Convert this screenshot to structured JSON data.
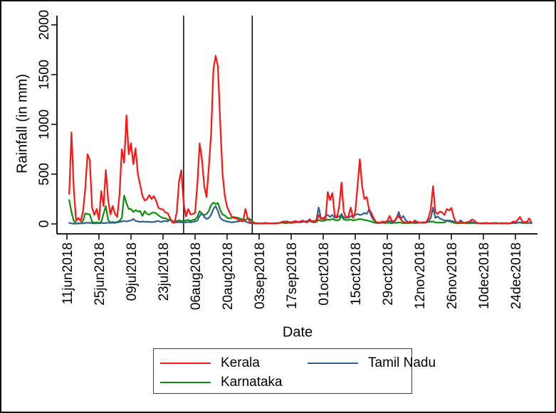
{
  "window": {
    "background": "#ffffff",
    "border_color": "#111111"
  },
  "chart_data": {
    "type": "line",
    "title": "",
    "xlabel": "Date",
    "ylabel": "Rainfall (in mm)",
    "grid": false,
    "ylim": [
      0,
      2000
    ],
    "y_ticks": [
      0,
      500,
      1000,
      1500,
      2000
    ],
    "x_unit": "days since 11jun2018",
    "xlim_days": [
      -4.4,
      205.6
    ],
    "y_domain": [
      -100,
      2095
    ],
    "x_ticks": [
      {
        "day": 0,
        "label": "11jun2018"
      },
      {
        "day": 14,
        "label": "25jun2018"
      },
      {
        "day": 28,
        "label": "09jul2018"
      },
      {
        "day": 42,
        "label": "23jul2018"
      },
      {
        "day": 56,
        "label": "06aug2018"
      },
      {
        "day": 70,
        "label": "20aug2018"
      },
      {
        "day": 84,
        "label": "03sep2018"
      },
      {
        "day": 98,
        "label": "17sep2018"
      },
      {
        "day": 112,
        "label": "01oct2018"
      },
      {
        "day": 126,
        "label": "15oct2018"
      },
      {
        "day": 140,
        "label": "29oct2018"
      },
      {
        "day": 154,
        "label": "12nov2018"
      },
      {
        "day": 168,
        "label": "26nov2018"
      },
      {
        "day": 182,
        "label": "10dec2018"
      },
      {
        "day": 196,
        "label": "24dec2018"
      }
    ],
    "reference_lines": {
      "color": "#000000",
      "days": [
        51,
        81
      ]
    },
    "legend": {
      "position": "bottom-center",
      "columns": 2,
      "border_color": "#3c3c3c"
    },
    "series": [
      {
        "name": "Kerala",
        "color": "#ff1414",
        "start_day": 1,
        "values": [
          300,
          920,
          350,
          30,
          60,
          30,
          120,
          350,
          700,
          640,
          160,
          90,
          150,
          40,
          330,
          180,
          540,
          240,
          95,
          180,
          100,
          70,
          300,
          750,
          615,
          1090,
          700,
          810,
          600,
          760,
          500,
          390,
          280,
          235,
          250,
          290,
          250,
          280,
          230,
          160,
          150,
          145,
          115,
          110,
          60,
          15,
          10,
          120,
          430,
          540,
          210,
          75,
          150,
          95,
          100,
          110,
          400,
          810,
          650,
          380,
          270,
          570,
          900,
          1550,
          1690,
          1580,
          1000,
          500,
          280,
          170,
          120,
          75,
          60,
          55,
          40,
          30,
          25,
          150,
          60,
          20,
          12,
          8,
          6,
          5,
          6,
          8,
          10,
          6,
          5,
          6,
          5,
          8,
          12,
          20,
          25,
          15,
          10,
          18,
          12,
          30,
          15,
          25,
          35,
          20,
          15,
          48,
          25,
          30,
          25,
          90,
          50,
          60,
          45,
          320,
          240,
          310,
          90,
          60,
          180,
          415,
          120,
          60,
          80,
          165,
          60,
          120,
          380,
          650,
          380,
          250,
          270,
          150,
          110,
          60,
          20,
          10,
          15,
          25,
          20,
          30,
          80,
          30,
          25,
          60,
          80,
          40,
          20,
          15,
          12,
          25,
          10,
          35,
          20,
          15,
          10,
          20,
          15,
          60,
          150,
          380,
          120,
          100,
          125,
          115,
          90,
          150,
          135,
          160,
          70,
          20,
          10,
          12,
          15,
          10,
          12,
          25,
          45,
          35,
          12,
          8,
          6,
          8,
          10,
          8,
          6,
          8,
          6,
          8,
          6,
          8,
          6,
          8,
          6,
          8,
          25,
          20,
          40,
          70,
          25,
          12,
          20,
          55,
          15
        ]
      },
      {
        "name": "Karnataka",
        "color": "#0b8f0b",
        "start_day": 1,
        "values": [
          240,
          120,
          30,
          5,
          4,
          5,
          30,
          105,
          100,
          95,
          20,
          12,
          15,
          10,
          20,
          100,
          180,
          40,
          15,
          20,
          15,
          20,
          30,
          60,
          285,
          210,
          150,
          150,
          120,
          140,
          125,
          130,
          80,
          129,
          100,
          93,
          110,
          114,
          107,
          85,
          71,
          60,
          57,
          45,
          40,
          25,
          22,
          30,
          35,
          30,
          28,
          36,
          40,
          30,
          40,
          45,
          70,
          129,
          100,
          90,
          100,
          130,
          190,
          214,
          200,
          210,
          140,
          95,
          85,
          60,
          55,
          60,
          70,
          65,
          60,
          50,
          45,
          40,
          55,
          50,
          25,
          10,
          8,
          6,
          5,
          6,
          8,
          6,
          5,
          6,
          8,
          6,
          10,
          12,
          10,
          8,
          12,
          10,
          12,
          15,
          20,
          15,
          20,
          25,
          20,
          36,
          20,
          15,
          20,
          40,
          30,
          30,
          35,
          45,
          40,
          50,
          40,
          35,
          40,
          79,
          45,
          40,
          38,
          45,
          35,
          40,
          45,
          50,
          45,
          40,
          35,
          30,
          25,
          15,
          10,
          8,
          10,
          12,
          8,
          12,
          10,
          8,
          12,
          10,
          15,
          12,
          8,
          10,
          8,
          10,
          12,
          8,
          10,
          12,
          14,
          10,
          15,
          20,
          22,
          25,
          15,
          12,
          15,
          12,
          15,
          36,
          25,
          20,
          12,
          8,
          6,
          8,
          10,
          8,
          6,
          8,
          10,
          8,
          6,
          8,
          6,
          8,
          6,
          8,
          6,
          8,
          10,
          8,
          6,
          8,
          6,
          8,
          6,
          8,
          10,
          8,
          12,
          15,
          8,
          10,
          8,
          12,
          8
        ]
      },
      {
        "name": "Tamil Nadu",
        "color": "#31608f",
        "start_day": 1,
        "values": [
          10,
          5,
          3,
          3,
          5,
          8,
          5,
          10,
          12,
          10,
          8,
          5,
          8,
          6,
          10,
          8,
          10,
          12,
          10,
          12,
          10,
          15,
          20,
          25,
          30,
          25,
          30,
          35,
          50,
          30,
          25,
          20,
          25,
          20,
          22,
          20,
          18,
          20,
          25,
          30,
          20,
          25,
          30,
          25,
          45,
          30,
          20,
          15,
          18,
          15,
          18,
          15,
          20,
          15,
          20,
          25,
          35,
          80,
          107,
          70,
          50,
          60,
          90,
          150,
          180,
          130,
          60,
          40,
          30,
          25,
          20,
          15,
          18,
          22,
          25,
          30,
          40,
          25,
          15,
          8,
          5,
          4,
          4,
          5,
          4,
          5,
          6,
          5,
          4,
          5,
          6,
          8,
          10,
          15,
          20,
          25,
          20,
          15,
          25,
          20,
          20,
          25,
          20,
          25,
          30,
          25,
          30,
          25,
          40,
          165,
          60,
          45,
          80,
          90,
          70,
          90,
          60,
          80,
          70,
          100,
          60,
          70,
          60,
          80,
          70,
          90,
          100,
          90,
          95,
          110,
          100,
          143,
          80,
          40,
          20,
          15,
          10,
          15,
          20,
          25,
          30,
          20,
          15,
          55,
          120,
          50,
          80,
          40,
          20,
          15,
          10,
          15,
          10,
          15,
          10,
          15,
          12,
          30,
          60,
          165,
          60,
          75,
          55,
          45,
          35,
          30,
          35,
          30,
          25,
          15,
          10,
          36,
          15,
          10,
          20,
          15,
          20,
          12,
          8,
          6,
          5,
          6,
          5,
          6,
          5,
          6,
          8,
          6,
          5,
          6,
          5,
          6,
          5,
          8,
          10,
          8,
          12,
          15,
          10,
          21,
          15,
          10,
          6
        ]
      }
    ]
  }
}
